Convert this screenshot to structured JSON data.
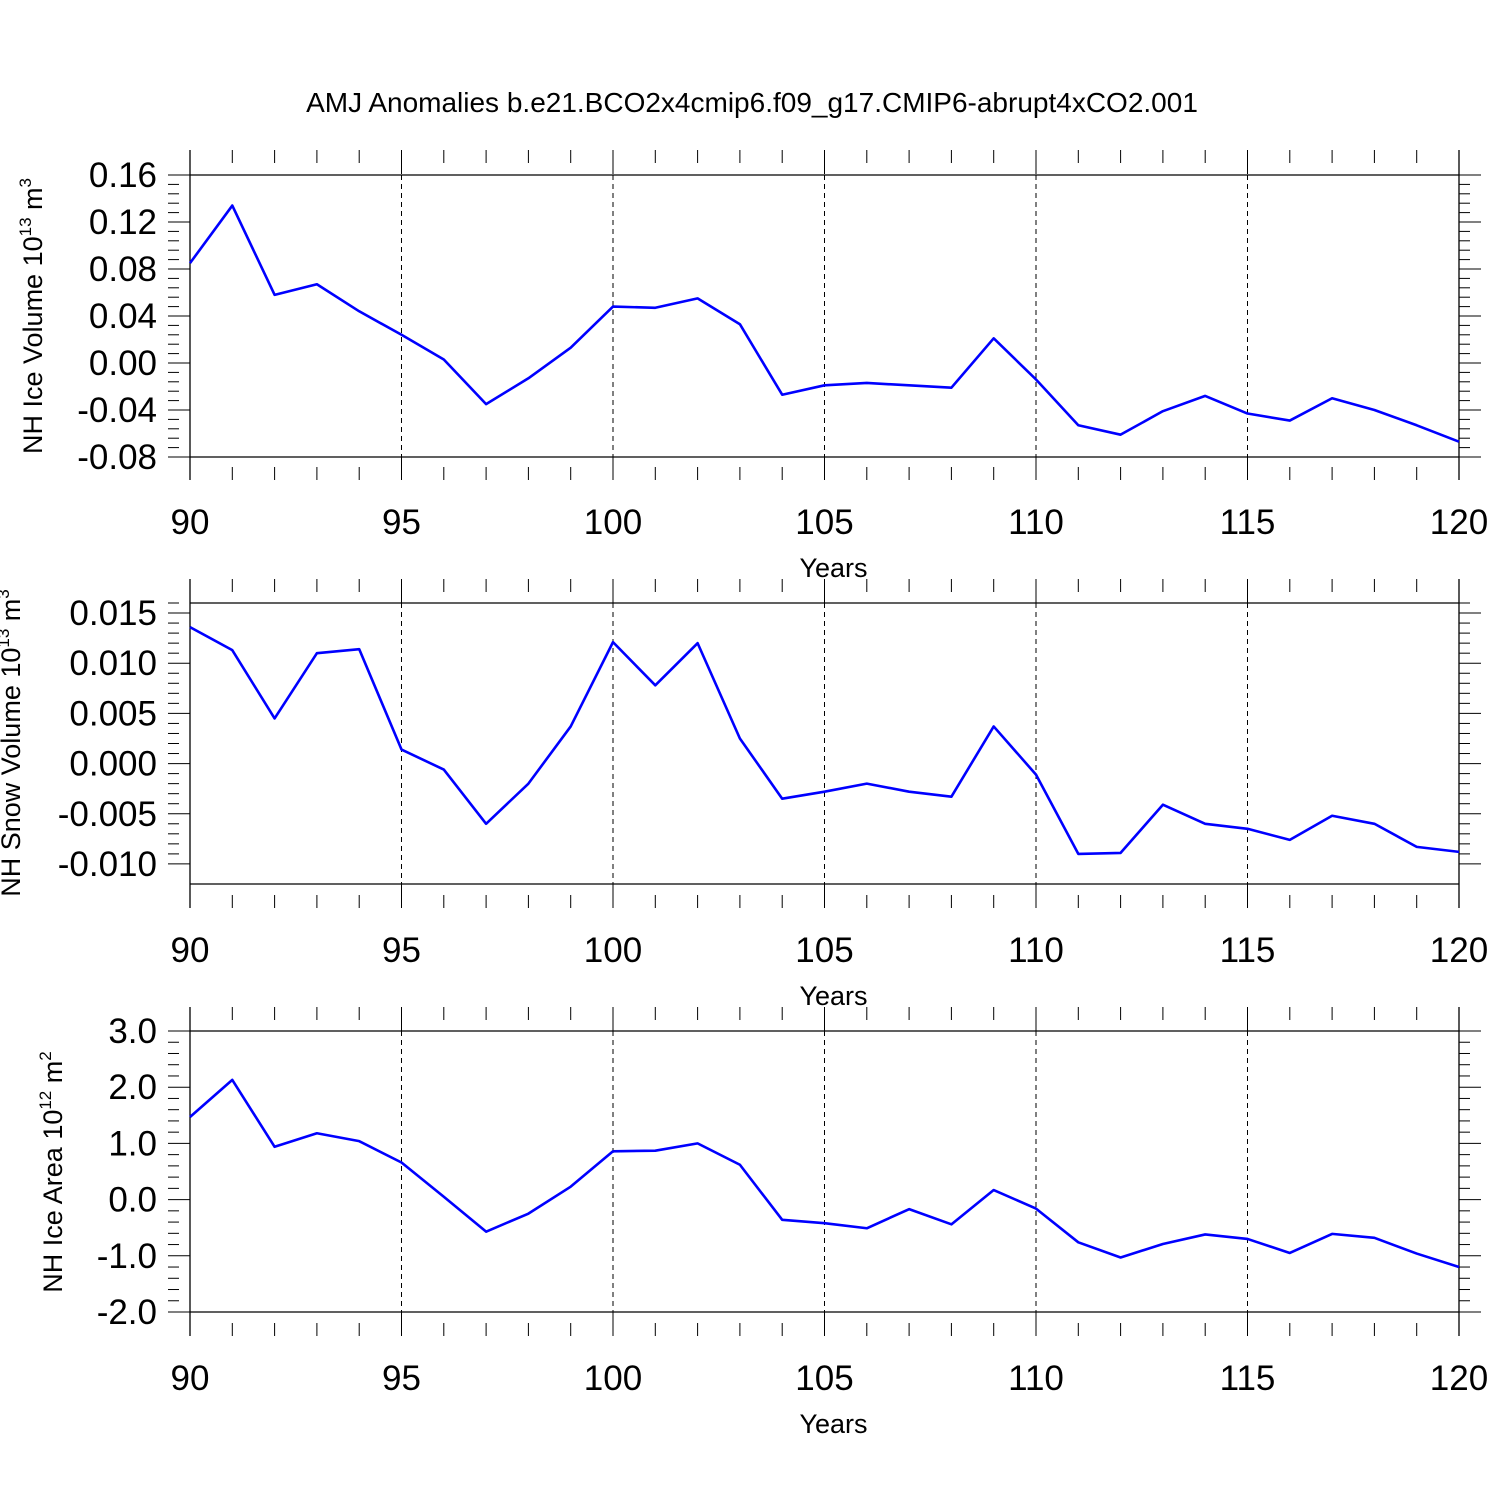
{
  "figure": {
    "title": "AMJ Anomalies b.e21.BCO2x4cmip6.f09_g17.CMIP6-abrupt4xCO2.001"
  },
  "colors": {
    "series": "#0000ff",
    "axes": "#000000",
    "grid": "#000000",
    "background": "#ffffff"
  },
  "chart_data": [
    {
      "type": "line",
      "title": "",
      "xlabel": "Years",
      "ylabel_parts": {
        "main": "NH Ice Volume 10",
        "exp": "13",
        "unit": " m",
        "unit_exp": "3"
      },
      "xlim": [
        90,
        120
      ],
      "ylim": [
        -0.08,
        0.16
      ],
      "xticks": [
        90,
        95,
        100,
        105,
        110,
        115,
        120
      ],
      "xtick_labels": [
        "90",
        "95",
        "100",
        "105",
        "110",
        "115",
        "120"
      ],
      "yticks": [
        -0.08,
        -0.04,
        0.0,
        0.04,
        0.08,
        0.12,
        0.16
      ],
      "ytick_labels": [
        "-0.08",
        "-0.04",
        "0.00",
        "0.04",
        "0.08",
        "0.12",
        "0.16"
      ],
      "grid": "dashed vertical at major x ticks",
      "legend": "none",
      "x": [
        90,
        91,
        92,
        93,
        94,
        95,
        96,
        97,
        98,
        99,
        100,
        101,
        102,
        103,
        104,
        105,
        106,
        107,
        108,
        109,
        110,
        111,
        112,
        113,
        114,
        115,
        116,
        117,
        118,
        119,
        120
      ],
      "series": [
        {
          "values": [
            0.085,
            0.134,
            0.058,
            0.067,
            0.044,
            0.024,
            0.003,
            -0.035,
            -0.013,
            0.013,
            0.048,
            0.047,
            0.055,
            0.033,
            -0.027,
            -0.019,
            -0.017,
            -0.019,
            -0.021,
            0.021,
            -0.014,
            -0.053,
            -0.061,
            -0.041,
            -0.028,
            -0.043,
            -0.049,
            -0.03,
            -0.04,
            -0.053,
            -0.067
          ]
        }
      ]
    },
    {
      "type": "line",
      "title": "",
      "xlabel": "Years",
      "ylabel_parts": {
        "main": "NH Snow Volume 10",
        "exp": "13",
        "unit": " m",
        "unit_exp": "3"
      },
      "xlim": [
        90,
        120
      ],
      "ylim": [
        -0.012,
        0.016
      ],
      "xticks": [
        90,
        95,
        100,
        105,
        110,
        115,
        120
      ],
      "xtick_labels": [
        "90",
        "95",
        "100",
        "105",
        "110",
        "115",
        "120"
      ],
      "yticks": [
        -0.01,
        -0.005,
        0.0,
        0.005,
        0.01,
        0.015
      ],
      "ytick_labels": [
        "-0.010",
        "-0.005",
        "0.000",
        "0.005",
        "0.010",
        "0.015"
      ],
      "grid": "dashed vertical at major x ticks",
      "legend": "none",
      "x": [
        90,
        91,
        92,
        93,
        94,
        95,
        96,
        97,
        98,
        99,
        100,
        101,
        102,
        103,
        104,
        105,
        106,
        107,
        108,
        109,
        110,
        111,
        112,
        113,
        114,
        115,
        116,
        117,
        118,
        119,
        120
      ],
      "series": [
        {
          "values": [
            0.0136,
            0.0113,
            0.0045,
            0.011,
            0.0114,
            0.0014,
            -0.0006,
            -0.006,
            -0.002,
            0.0037,
            0.0121,
            0.0078,
            0.012,
            0.0025,
            -0.0035,
            -0.0028,
            -0.002,
            -0.0028,
            -0.0033,
            0.0037,
            -0.0011,
            -0.009,
            -0.0089,
            -0.0041,
            -0.006,
            -0.0065,
            -0.0076,
            -0.0052,
            -0.006,
            -0.0083,
            -0.0088
          ]
        }
      ]
    },
    {
      "type": "line",
      "title": "",
      "xlabel": "Years",
      "ylabel_parts": {
        "main": "NH Ice Area 10",
        "exp": "12",
        "unit": " m",
        "unit_exp": "2"
      },
      "xlim": [
        90,
        120
      ],
      "ylim": [
        -2.0,
        3.0
      ],
      "xticks": [
        90,
        95,
        100,
        105,
        110,
        115,
        120
      ],
      "xtick_labels": [
        "90",
        "95",
        "100",
        "105",
        "110",
        "115",
        "120"
      ],
      "yticks": [
        -2.0,
        -1.0,
        0.0,
        1.0,
        2.0,
        3.0
      ],
      "ytick_labels": [
        "-2.0",
        "-1.0",
        "0.0",
        "1.0",
        "2.0",
        "3.0"
      ],
      "grid": "dashed vertical at major x ticks",
      "legend": "none",
      "x": [
        90,
        91,
        92,
        93,
        94,
        95,
        96,
        97,
        98,
        99,
        100,
        101,
        102,
        103,
        104,
        105,
        106,
        107,
        108,
        109,
        110,
        111,
        112,
        113,
        114,
        115,
        116,
        117,
        118,
        119,
        120
      ],
      "series": [
        {
          "values": [
            1.47,
            2.13,
            0.94,
            1.18,
            1.04,
            0.66,
            0.05,
            -0.57,
            -0.25,
            0.23,
            0.86,
            0.87,
            1.0,
            0.62,
            -0.36,
            -0.42,
            -0.51,
            -0.17,
            -0.44,
            0.17,
            -0.16,
            -0.76,
            -1.03,
            -0.79,
            -0.62,
            -0.7,
            -0.95,
            -0.61,
            -0.68,
            -0.96,
            -1.2
          ]
        }
      ]
    }
  ]
}
